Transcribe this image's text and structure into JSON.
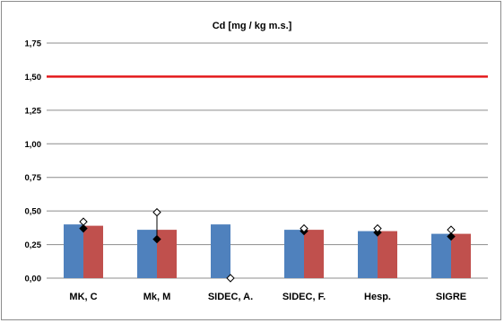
{
  "chart_data": {
    "type": "bar",
    "title": "Cd [mg / kg m.s.]",
    "xlabel": "",
    "ylabel": "",
    "ylim": [
      0,
      1.75
    ],
    "yticks": [
      "0,00",
      "0,25",
      "0,50",
      "0,75",
      "1,00",
      "1,25",
      "1,50",
      "1,75"
    ],
    "grid": true,
    "categories": [
      "MK, C",
      "Mk, M",
      "SIDEC, A.",
      "SIDEC, F.",
      "Hesp.",
      "SIGRE"
    ],
    "series": [
      {
        "color": "#4f81bd",
        "values": [
          0.4,
          0.36,
          0.4,
          0.36,
          0.35,
          0.33
        ]
      },
      {
        "color": "#c0504d",
        "values": [
          0.39,
          0.36,
          null,
          0.36,
          0.35,
          0.33
        ]
      }
    ],
    "markers": {
      "open_diamond": [
        0.42,
        0.49,
        0.0,
        0.37,
        0.37,
        0.36
      ],
      "filled_diamond": [
        0.37,
        0.29,
        null,
        0.35,
        0.34,
        0.31
      ]
    },
    "reference_line": {
      "value": 1.5,
      "color": "#e41a1c"
    }
  }
}
